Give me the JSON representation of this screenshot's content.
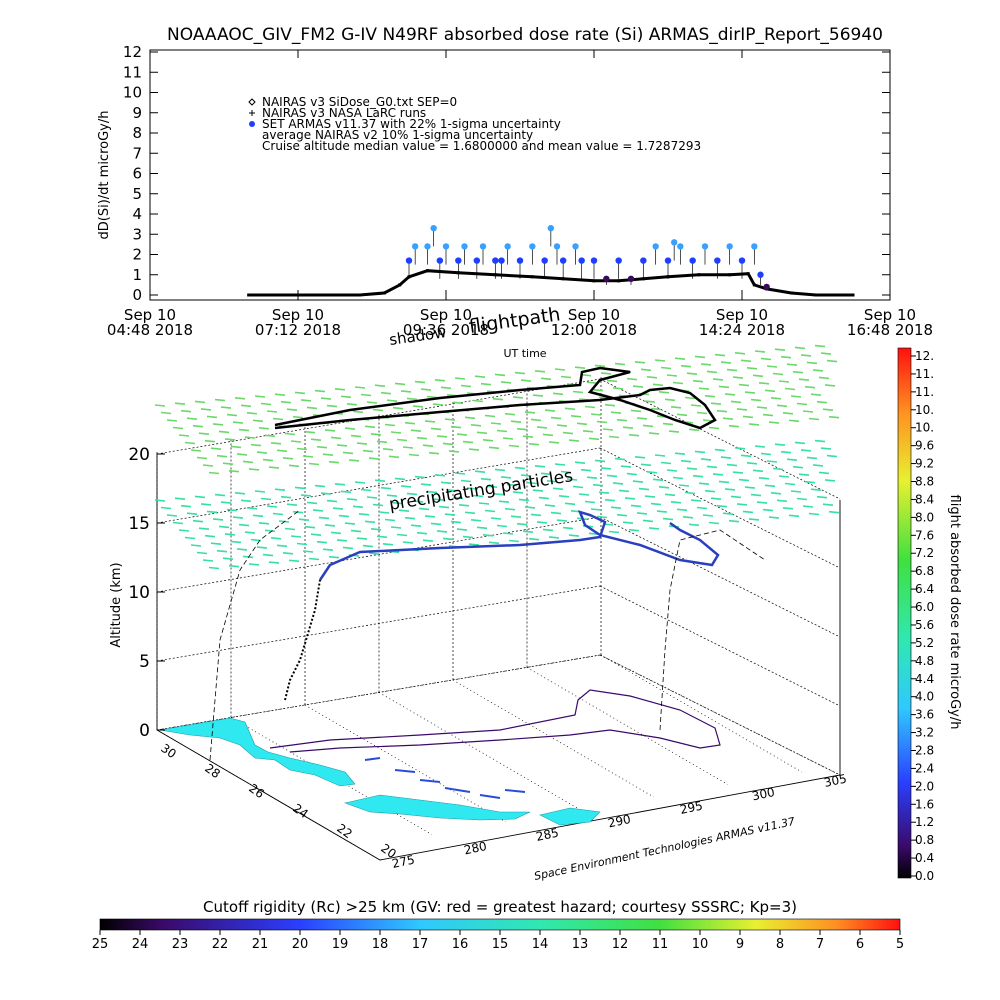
{
  "title": "NOAAAOC_GIV_FM2 G-IV    N49RF  absorbed dose rate (Si) ARMAS_dirIP_Report_56940",
  "top_panel": {
    "ylabel": "dD(Si)/dt microGy/h",
    "xlabel": "UT time",
    "legend": [
      {
        "symbol": "diamond",
        "text": "NAIRAS v3 SiDose_G0.txt SEP=0"
      },
      {
        "symbol": "plus",
        "text": "NAIRAS v3 NASA LaRC runs"
      },
      {
        "symbol": "dot",
        "text": "SET ARMAS v11.37 with 22% 1-sigma uncertainty"
      },
      {
        "symbol": "none",
        "text": "average NAIRAS v2 10% 1-sigma uncertainty"
      },
      {
        "symbol": "none",
        "text": "Cruise altitude median value = 1.6800000 and mean value = 1.7287293"
      }
    ]
  },
  "overlay_labels": {
    "flightpath": "flightpath",
    "shadow": "shadow",
    "precipitating": "precipitating particles",
    "watermark": "Space Environment Technologies ARMAS v11.37"
  },
  "bottom_panel": {
    "zlabel": "Altitude (km)",
    "z_ticks": [
      "0",
      "5",
      "10",
      "15",
      "20"
    ],
    "lat_ticks": [
      "30",
      "28",
      "26",
      "24",
      "22",
      "20"
    ],
    "lon_ticks": [
      "275",
      "280",
      "285",
      "290",
      "295",
      "300",
      "305"
    ]
  },
  "right_colorbar": {
    "label": "flight absorbed dose rate microGy/h",
    "ticks": [
      "12.",
      "11.",
      "11.",
      "10.",
      "10.",
      "9.6",
      "9.2",
      "8.8",
      "8.4",
      "8.0",
      "7.6",
      "7.2",
      "6.8",
      "6.4",
      "6.0",
      "5.6",
      "5.2",
      "4.8",
      "4.4",
      "4.0",
      "3.6",
      "3.2",
      "2.8",
      "2.4",
      "2.0",
      "1.6",
      "1.2",
      "0.8",
      "0.4",
      "0.0"
    ]
  },
  "bottom_colorbar": {
    "label": "Cutoff rigidity (Rc) >25 km (GV: red = greatest hazard; courtesy SSSRC; Kp=3)",
    "ticks": [
      "25",
      "24",
      "23",
      "22",
      "21",
      "20",
      "19",
      "18",
      "17",
      "16",
      "15",
      "14",
      "13",
      "12",
      "11",
      "10",
      "9",
      "8",
      "7",
      "6",
      "5"
    ]
  },
  "colors": {
    "armas_dot": "#1f3fff",
    "armas_high": "#3aa0ff",
    "nairas": "#000000",
    "purple": "#3a0a5a",
    "grid_arrow": "#33e080",
    "land": "#30e8f0"
  },
  "chart_data": [
    {
      "type": "scatter",
      "title": "NOAAAOC_GIV_FM2 G-IV    N49RF  absorbed dose rate (Si) ARMAS_dirIP_Report_56940",
      "xlabel": "UT time",
      "ylabel": "dD(Si)/dt microGy/h",
      "x_unit": "hours UT",
      "xlim": [
        4.8,
        16.8
      ],
      "ylim": [
        0,
        12
      ],
      "x_tick_values": [
        4.8,
        7.2,
        9.6,
        12.0,
        14.4,
        16.8
      ],
      "x_tick_labels": [
        [
          "Sep 10",
          "04:48 2018"
        ],
        [
          "Sep 10",
          "07:12 2018"
        ],
        [
          "Sep 10",
          "09:36 2018"
        ],
        [
          "Sep 10",
          "12:00 2018"
        ],
        [
          "Sep 10",
          "14:24 2018"
        ],
        [
          "Sep 10",
          "16:48 2018"
        ]
      ],
      "y_ticks": [
        0,
        1,
        2,
        3,
        4,
        5,
        6,
        7,
        8,
        9,
        10,
        11,
        12
      ],
      "series": [
        {
          "name": "NAIRAS v3 SiDose_G0.txt SEP=0",
          "points": [
            [
              6.4,
              0.0
            ],
            [
              7.0,
              0.0
            ],
            [
              7.6,
              0.0
            ],
            [
              8.2,
              0.0
            ],
            [
              8.6,
              0.1
            ],
            [
              8.85,
              0.5
            ],
            [
              9.0,
              0.9
            ],
            [
              9.3,
              1.2
            ],
            [
              9.8,
              1.1
            ],
            [
              10.4,
              1.0
            ],
            [
              11.0,
              0.9
            ],
            [
              11.5,
              0.8
            ],
            [
              12.0,
              0.7
            ],
            [
              12.4,
              0.7
            ],
            [
              12.8,
              0.8
            ],
            [
              13.2,
              0.9
            ],
            [
              13.7,
              1.0
            ],
            [
              14.2,
              1.0
            ],
            [
              14.5,
              1.05
            ],
            [
              14.6,
              0.5
            ],
            [
              14.8,
              0.3
            ],
            [
              15.2,
              0.1
            ],
            [
              15.6,
              0.0
            ],
            [
              16.2,
              0.0
            ]
          ]
        },
        {
          "name": "SET ARMAS v11.37 with 22% 1-sigma uncertainty",
          "points": [
            [
              9.0,
              1.7
            ],
            [
              9.1,
              2.4
            ],
            [
              9.3,
              2.4
            ],
            [
              9.4,
              3.3
            ],
            [
              9.5,
              1.7
            ],
            [
              9.6,
              2.4
            ],
            [
              9.8,
              1.7
            ],
            [
              9.9,
              2.4
            ],
            [
              10.1,
              1.7
            ],
            [
              10.2,
              2.4
            ],
            [
              10.4,
              1.7
            ],
            [
              10.5,
              1.7
            ],
            [
              10.6,
              2.4
            ],
            [
              10.8,
              1.7
            ],
            [
              11.0,
              2.4
            ],
            [
              11.2,
              1.7
            ],
            [
              11.3,
              3.3
            ],
            [
              11.4,
              2.4
            ],
            [
              11.5,
              1.7
            ],
            [
              11.7,
              2.4
            ],
            [
              11.8,
              1.7
            ],
            [
              12.0,
              1.7
            ],
            [
              12.2,
              0.8
            ],
            [
              12.4,
              1.7
            ],
            [
              12.6,
              0.8
            ],
            [
              12.8,
              1.7
            ],
            [
              13.0,
              2.4
            ],
            [
              13.2,
              1.7
            ],
            [
              13.3,
              2.6
            ],
            [
              13.4,
              2.4
            ],
            [
              13.6,
              1.7
            ],
            [
              13.8,
              2.4
            ],
            [
              14.0,
              1.7
            ],
            [
              14.2,
              2.4
            ],
            [
              14.4,
              1.7
            ],
            [
              14.6,
              2.4
            ],
            [
              14.7,
              1.0
            ],
            [
              14.8,
              0.4
            ]
          ]
        }
      ]
    },
    {
      "type": "scatter",
      "title": "",
      "xlabel": "",
      "ylabel": "Altitude (km)",
      "zlim": [
        0,
        20
      ],
      "lat_lim": [
        20,
        30
      ],
      "lon_lim": [
        275,
        305
      ],
      "colorbar": {
        "label": "flight absorbed dose rate microGy/h",
        "range": [
          0,
          12
        ]
      },
      "cutoff_colorbar": {
        "label": "Cutoff rigidity (Rc) >25 km (GV: red = greatest hazard; courtesy SSSRC; Kp=3)",
        "range": [
          25,
          5
        ]
      }
    }
  ]
}
